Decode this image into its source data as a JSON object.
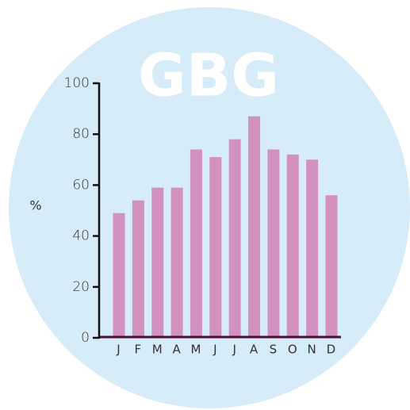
{
  "chart_data": {
    "type": "bar",
    "title": "GBG",
    "y_label": "%",
    "categories": [
      "J",
      "F",
      "M",
      "A",
      "M",
      "J",
      "J",
      "A",
      "S",
      "O",
      "N",
      "D"
    ],
    "values": [
      49,
      54,
      59,
      59,
      74,
      71,
      78,
      87,
      74,
      72,
      70,
      56
    ],
    "color": "#d291be",
    "ylim": [
      0,
      100
    ],
    "yticks": [
      0,
      20,
      40,
      60,
      80,
      100
    ],
    "grid": false
  }
}
